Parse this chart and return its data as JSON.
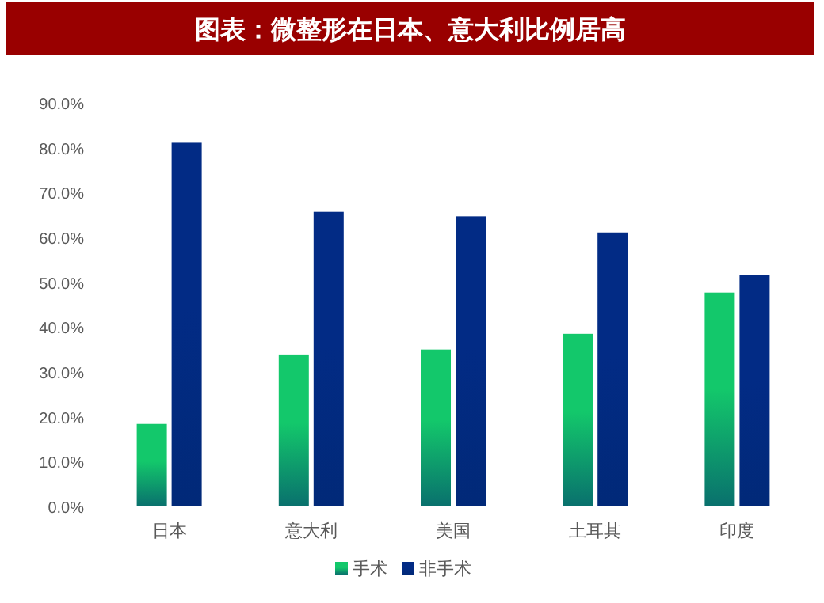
{
  "chart_data": {
    "type": "bar",
    "title": "图表：微整形在日本、意大利比例居高",
    "categories": [
      "日本",
      "意大利",
      "美国",
      "土耳其",
      "印度"
    ],
    "series": [
      {
        "name": "手术",
        "color": "#13c86b",
        "values": [
          18.4,
          33.9,
          35.0,
          38.5,
          47.7
        ]
      },
      {
        "name": "非手术",
        "color": "#022b85",
        "values": [
          81.1,
          65.7,
          64.7,
          61.1,
          51.6
        ]
      }
    ],
    "ylim": [
      0,
      90
    ],
    "yticks": [
      {
        "value": 0,
        "label": "0.0%"
      },
      {
        "value": 10,
        "label": "10.0%"
      },
      {
        "value": 20,
        "label": "20.0%"
      },
      {
        "value": 30,
        "label": "30.0%"
      },
      {
        "value": 40,
        "label": "40.0%"
      },
      {
        "value": 50,
        "label": "50.0%"
      },
      {
        "value": 60,
        "label": "60.0%"
      },
      {
        "value": 70,
        "label": "70.0%"
      },
      {
        "value": 80,
        "label": "80.0%"
      },
      {
        "value": 90,
        "label": "90.0%"
      }
    ],
    "grid": false,
    "legend": "bottom"
  }
}
